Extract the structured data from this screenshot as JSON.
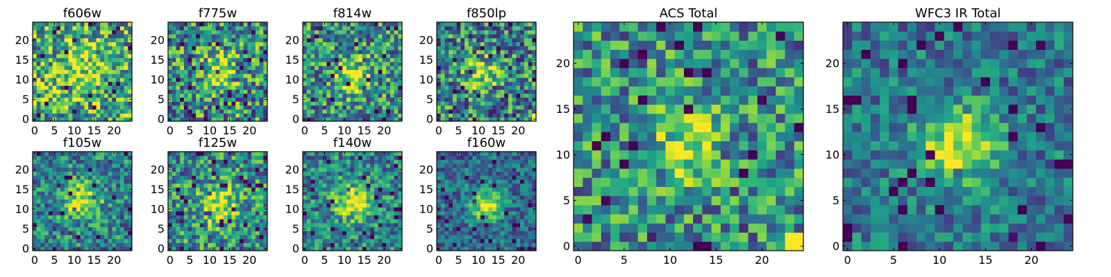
{
  "figure": {
    "colormap": "viridis",
    "colorbar": false
  },
  "chart_data": [
    {
      "type": "heatmap",
      "title": "f606w",
      "xlim": [
        0,
        24
      ],
      "ylim": [
        0,
        24
      ],
      "xticks": [
        0,
        5,
        10,
        15,
        20
      ],
      "yticks": [
        0,
        5,
        10,
        15,
        20
      ],
      "grid_size": 25,
      "peak": [
        12,
        13
      ],
      "signal": 0.3,
      "sigma": 4.0,
      "noise": 0.42,
      "base": 0.6,
      "seed": 11
    },
    {
      "type": "heatmap",
      "title": "f775w",
      "xlim": [
        0,
        24
      ],
      "ylim": [
        0,
        24
      ],
      "xticks": [
        0,
        5,
        10,
        15,
        20
      ],
      "yticks": [
        0,
        5,
        10,
        15,
        20
      ],
      "grid_size": 25,
      "peak": [
        12,
        12
      ],
      "signal": 0.35,
      "sigma": 3.5,
      "noise": 0.42,
      "base": 0.5,
      "seed": 23
    },
    {
      "type": "heatmap",
      "title": "f814w",
      "xlim": [
        0,
        24
      ],
      "ylim": [
        0,
        24
      ],
      "xticks": [
        0,
        5,
        10,
        15,
        20
      ],
      "yticks": [
        0,
        5,
        10,
        15,
        20
      ],
      "grid_size": 25,
      "peak": [
        12,
        11
      ],
      "signal": 0.45,
      "sigma": 3.0,
      "noise": 0.38,
      "base": 0.5,
      "seed": 37
    },
    {
      "type": "heatmap",
      "title": "f850lp",
      "xlim": [
        0,
        24
      ],
      "ylim": [
        0,
        24
      ],
      "xticks": [
        0,
        5,
        10,
        15,
        20
      ],
      "yticks": [
        0,
        5,
        10,
        15,
        20
      ],
      "grid_size": 25,
      "peak": [
        11,
        11
      ],
      "signal": 0.4,
      "sigma": 3.0,
      "noise": 0.4,
      "base": 0.45,
      "seed": 41,
      "hot_pixels": [
        [
          24,
          0
        ],
        [
          24,
          1
        ]
      ]
    },
    {
      "type": "heatmap",
      "title": "f105w",
      "xlim": [
        0,
        24
      ],
      "ylim": [
        0,
        24
      ],
      "xticks": [
        0,
        5,
        10,
        15,
        20
      ],
      "yticks": [
        0,
        5,
        10,
        15,
        20
      ],
      "grid_size": 25,
      "peak": [
        12,
        12
      ],
      "signal": 0.5,
      "sigma": 3.2,
      "noise": 0.3,
      "base": 0.45,
      "seed": 53
    },
    {
      "type": "heatmap",
      "title": "f125w",
      "xlim": [
        0,
        24
      ],
      "ylim": [
        0,
        24
      ],
      "xticks": [
        0,
        5,
        10,
        15,
        20
      ],
      "yticks": [
        0,
        5,
        10,
        15,
        20
      ],
      "grid_size": 25,
      "peak": [
        12,
        11
      ],
      "signal": 0.5,
      "sigma": 3.2,
      "noise": 0.34,
      "base": 0.5,
      "seed": 67
    },
    {
      "type": "heatmap",
      "title": "f140w",
      "xlim": [
        0,
        24
      ],
      "ylim": [
        0,
        24
      ],
      "xticks": [
        0,
        5,
        10,
        15,
        20
      ],
      "yticks": [
        0,
        5,
        10,
        15,
        20
      ],
      "grid_size": 25,
      "peak": [
        12,
        12
      ],
      "signal": 0.5,
      "sigma": 3.2,
      "noise": 0.3,
      "base": 0.45,
      "seed": 71
    },
    {
      "type": "heatmap",
      "title": "f160w",
      "xlim": [
        0,
        24
      ],
      "ylim": [
        0,
        24
      ],
      "xticks": [
        0,
        5,
        10,
        15,
        20
      ],
      "yticks": [
        0,
        5,
        10,
        15,
        20
      ],
      "grid_size": 25,
      "peak": [
        12,
        11
      ],
      "signal": 0.6,
      "sigma": 2.8,
      "noise": 0.24,
      "base": 0.35,
      "seed": 83
    },
    {
      "type": "heatmap",
      "title": "ACS Total",
      "xlim": [
        0,
        24
      ],
      "ylim": [
        0,
        24
      ],
      "xticks": [
        0,
        5,
        10,
        15,
        20
      ],
      "yticks": [
        0,
        5,
        10,
        15,
        20
      ],
      "grid_size": 25,
      "peak": [
        12,
        11
      ],
      "signal": 0.45,
      "sigma": 2.5,
      "noise": 0.34,
      "base": 0.5,
      "seed": 97,
      "hot_pixels": [
        [
          23,
          0
        ],
        [
          24,
          0
        ],
        [
          23,
          1
        ],
        [
          24,
          1
        ]
      ]
    },
    {
      "type": "heatmap",
      "title": "WFC3 IR Total",
      "xlim": [
        0,
        24
      ],
      "ylim": [
        0,
        24
      ],
      "xticks": [
        0,
        5,
        10,
        15,
        20
      ],
      "yticks": [
        0,
        5,
        10,
        15,
        20
      ],
      "grid_size": 25,
      "peak": [
        12,
        11
      ],
      "signal": 0.55,
      "sigma": 3.0,
      "noise": 0.24,
      "base": 0.4,
      "seed": 101
    }
  ]
}
